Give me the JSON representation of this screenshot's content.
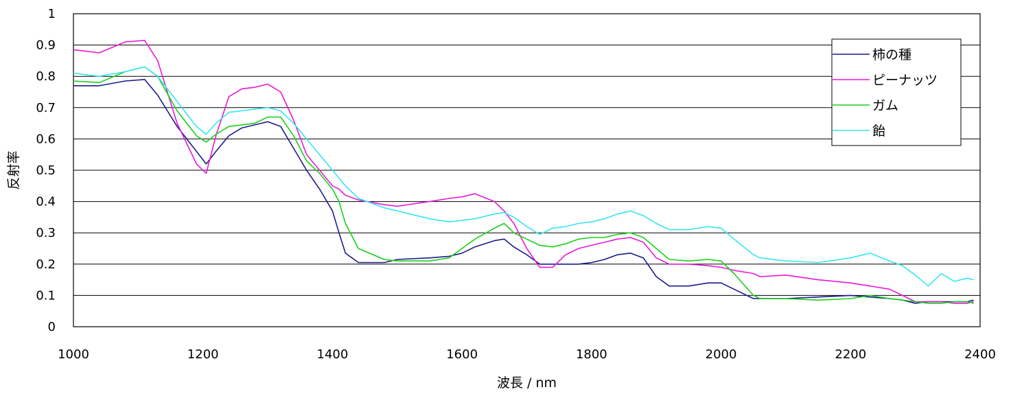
{
  "chart_data": {
    "type": "line",
    "xlabel": "波長 / nm",
    "ylabel": "反射率",
    "xlim": [
      1000,
      2400
    ],
    "ylim": [
      0,
      1
    ],
    "xticks": [
      "1000",
      "1200",
      "1400",
      "1600",
      "1800",
      "2000",
      "2200",
      "2400"
    ],
    "yticks": [
      "0",
      "0.1",
      "0.2",
      "0.3",
      "0.4",
      "0.5",
      "0.6",
      "0.7",
      "0.8",
      "0.9",
      "1"
    ],
    "grid": "horizontal",
    "legend_position": "top-right",
    "x": [
      1000,
      1040,
      1080,
      1110,
      1130,
      1160,
      1190,
      1205,
      1220,
      1240,
      1260,
      1280,
      1300,
      1320,
      1340,
      1360,
      1380,
      1400,
      1410,
      1420,
      1440,
      1480,
      1500,
      1550,
      1580,
      1600,
      1620,
      1650,
      1665,
      1680,
      1700,
      1720,
      1740,
      1760,
      1780,
      1800,
      1820,
      1840,
      1860,
      1880,
      1900,
      1920,
      1950,
      1980,
      2000,
      2020,
      2050,
      2060,
      2100,
      2150,
      2200,
      2230,
      2260,
      2280,
      2300,
      2320,
      2340,
      2360,
      2380,
      2390
    ],
    "series": [
      {
        "name": "柿の種",
        "color": "#1a1a8c",
        "values": [
          0.77,
          0.77,
          0.785,
          0.79,
          0.74,
          0.64,
          0.56,
          0.52,
          0.56,
          0.61,
          0.635,
          0.645,
          0.655,
          0.64,
          0.57,
          0.5,
          0.44,
          0.37,
          0.3,
          0.235,
          0.205,
          0.205,
          0.215,
          0.22,
          0.225,
          0.235,
          0.255,
          0.275,
          0.28,
          0.255,
          0.23,
          0.2,
          0.2,
          0.2,
          0.2,
          0.205,
          0.215,
          0.23,
          0.235,
          0.22,
          0.16,
          0.13,
          0.13,
          0.14,
          0.14,
          0.12,
          0.09,
          0.09,
          0.09,
          0.095,
          0.1,
          0.095,
          0.09,
          0.085,
          0.075,
          0.08,
          0.08,
          0.08,
          0.08,
          0.085
        ]
      },
      {
        "name": "ピーナッツ",
        "color": "#e619d6",
        "values": [
          0.885,
          0.875,
          0.91,
          0.915,
          0.85,
          0.65,
          0.52,
          0.49,
          0.61,
          0.735,
          0.76,
          0.765,
          0.775,
          0.75,
          0.66,
          0.55,
          0.5,
          0.45,
          0.44,
          0.42,
          0.405,
          0.39,
          0.385,
          0.4,
          0.41,
          0.415,
          0.425,
          0.4,
          0.37,
          0.33,
          0.25,
          0.19,
          0.19,
          0.23,
          0.25,
          0.26,
          0.27,
          0.28,
          0.285,
          0.27,
          0.22,
          0.2,
          0.2,
          0.195,
          0.19,
          0.18,
          0.17,
          0.16,
          0.165,
          0.15,
          0.14,
          0.13,
          0.12,
          0.1,
          0.08,
          0.08,
          0.08,
          0.075,
          0.075,
          0.08
        ]
      },
      {
        "name": "ガム",
        "color": "#19cf19",
        "values": [
          0.785,
          0.78,
          0.815,
          0.83,
          0.8,
          0.69,
          0.61,
          0.59,
          0.615,
          0.64,
          0.645,
          0.65,
          0.67,
          0.67,
          0.61,
          0.53,
          0.49,
          0.44,
          0.4,
          0.33,
          0.25,
          0.215,
          0.21,
          0.21,
          0.22,
          0.25,
          0.28,
          0.315,
          0.33,
          0.3,
          0.28,
          0.26,
          0.255,
          0.265,
          0.28,
          0.285,
          0.285,
          0.295,
          0.3,
          0.285,
          0.25,
          0.215,
          0.21,
          0.215,
          0.21,
          0.17,
          0.1,
          0.09,
          0.09,
          0.085,
          0.09,
          0.1,
          0.09,
          0.085,
          0.08,
          0.075,
          0.075,
          0.08,
          0.08,
          0.075
        ]
      },
      {
        "name": "飴",
        "color": "#33e6f2",
        "values": [
          0.81,
          0.8,
          0.815,
          0.83,
          0.8,
          0.72,
          0.64,
          0.615,
          0.65,
          0.685,
          0.69,
          0.695,
          0.7,
          0.69,
          0.65,
          0.6,
          0.55,
          0.5,
          0.475,
          0.45,
          0.41,
          0.38,
          0.37,
          0.345,
          0.335,
          0.34,
          0.345,
          0.36,
          0.365,
          0.35,
          0.32,
          0.295,
          0.315,
          0.32,
          0.33,
          0.335,
          0.345,
          0.36,
          0.37,
          0.355,
          0.33,
          0.31,
          0.31,
          0.32,
          0.315,
          0.28,
          0.23,
          0.22,
          0.21,
          0.205,
          0.22,
          0.235,
          0.21,
          0.195,
          0.165,
          0.13,
          0.17,
          0.145,
          0.155,
          0.15
        ]
      }
    ]
  },
  "colors": {
    "gridline": "#000000",
    "plot_border": "#000000",
    "background": "#ffffff"
  }
}
